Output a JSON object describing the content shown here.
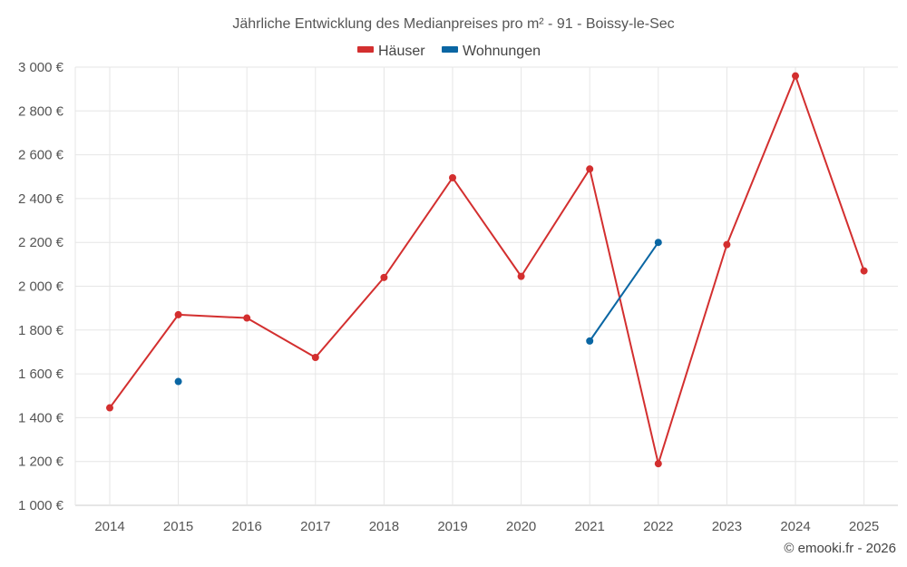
{
  "chart_data": {
    "type": "line",
    "title": "Jährliche Entwicklung des Medianpreises pro m² - 91 - Boissy-le-Sec",
    "categories": [
      "2014",
      "2015",
      "2016",
      "2017",
      "2018",
      "2019",
      "2020",
      "2021",
      "2022",
      "2023",
      "2024",
      "2025"
    ],
    "ylim": [
      1000,
      3000
    ],
    "yticks": [
      1000,
      1200,
      1400,
      1600,
      1800,
      2000,
      2200,
      2400,
      2600,
      2800,
      3000
    ],
    "ytick_labels": [
      "1 000 €",
      "1 200 €",
      "1 400 €",
      "1 600 €",
      "1 800 €",
      "2 000 €",
      "2 200 €",
      "2 400 €",
      "2 600 €",
      "2 800 €",
      "3 000 €"
    ],
    "xlabel": "",
    "ylabel": "",
    "grid": true,
    "legend_position": "top-center",
    "series": [
      {
        "name": "Häuser",
        "color": "#d32f2f",
        "values": [
          1445,
          1870,
          1855,
          1675,
          2040,
          2495,
          2045,
          2535,
          1190,
          2190,
          2960,
          2070
        ]
      },
      {
        "name": "Wohnungen",
        "color": "#0a66a3",
        "values": [
          null,
          1565,
          null,
          null,
          null,
          null,
          null,
          1750,
          2200,
          null,
          null,
          null
        ]
      }
    ]
  },
  "copyright": "© emooki.fr - 2026"
}
